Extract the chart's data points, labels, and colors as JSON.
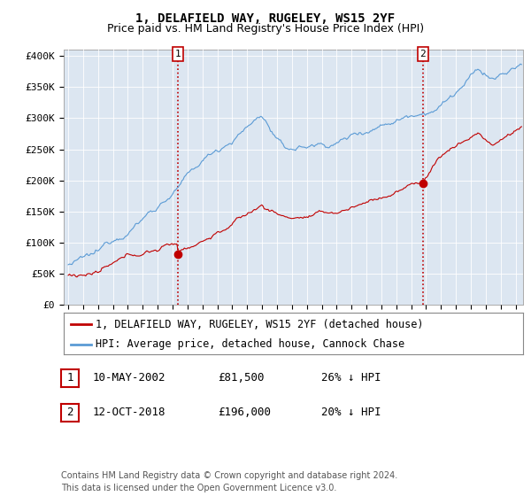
{
  "title": "1, DELAFIELD WAY, RUGELEY, WS15 2YF",
  "subtitle": "Price paid vs. HM Land Registry's House Price Index (HPI)",
  "ylabel_ticks": [
    "£0",
    "£50K",
    "£100K",
    "£150K",
    "£200K",
    "£250K",
    "£300K",
    "£350K",
    "£400K"
  ],
  "ytick_values": [
    0,
    50000,
    100000,
    150000,
    200000,
    250000,
    300000,
    350000,
    400000
  ],
  "ylim": [
    0,
    410000
  ],
  "xlim_start": 1994.7,
  "xlim_end": 2025.5,
  "hpi_color": "#5b9bd5",
  "price_color": "#c00000",
  "plot_bg_color": "#dce6f1",
  "sale1": {
    "date_num": 2002.36,
    "price": 81500,
    "label": "1"
  },
  "sale2": {
    "date_num": 2018.79,
    "price": 196000,
    "label": "2"
  },
  "vline_color": "#c00000",
  "vline_style": ":",
  "legend_items": [
    {
      "label": "1, DELAFIELD WAY, RUGELEY, WS15 2YF (detached house)",
      "color": "#c00000"
    },
    {
      "label": "HPI: Average price, detached house, Cannock Chase",
      "color": "#5b9bd5"
    }
  ],
  "table_rows": [
    {
      "num": "1",
      "date": "10-MAY-2002",
      "price": "£81,500",
      "pct": "26% ↓ HPI"
    },
    {
      "num": "2",
      "date": "12-OCT-2018",
      "price": "£196,000",
      "pct": "20% ↓ HPI"
    }
  ],
  "footer": "Contains HM Land Registry data © Crown copyright and database right 2024.\nThis data is licensed under the Open Government Licence v3.0.",
  "background_color": "#ffffff",
  "grid_color": "#ffffff",
  "title_fontsize": 10,
  "subtitle_fontsize": 9,
  "tick_fontsize": 8,
  "legend_fontsize": 8.5,
  "footer_fontsize": 7
}
